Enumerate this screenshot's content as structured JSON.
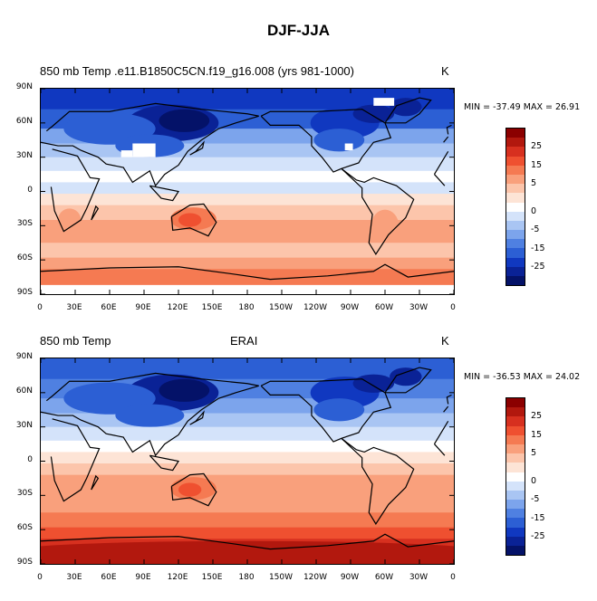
{
  "title": "DJF-JJA",
  "panels": [
    {
      "left_label": "850 mb Temp",
      "center_label": ".e11.B1850C5CN.f19_g16.008 (yrs 981-1000)",
      "units": "K",
      "min_max": "MIN = -37.49 MAX =  26.91",
      "has_missing_data": true
    },
    {
      "left_label": "850 mb Temp",
      "center_label": "ERAI",
      "units": "K",
      "min_max": "MIN = -36.53 MAX = 24.02",
      "has_missing_data": false
    }
  ],
  "lat_ticks": [
    "90N",
    "60N",
    "30N",
    "0",
    "30S",
    "60S",
    "90S"
  ],
  "lon_ticks": [
    "0",
    "30E",
    "60E",
    "90E",
    "120E",
    "150E",
    "180",
    "150W",
    "120W",
    "90W",
    "60W",
    "30W",
    "0"
  ],
  "colorbar_labels": [
    "25",
    "15",
    "5",
    "0",
    "-5",
    "-15",
    "-25"
  ],
  "colorbar_colors": [
    "#8b0000",
    "#b2180e",
    "#d7301f",
    "#ef5030",
    "#f57a52",
    "#f9a07c",
    "#fcc5ab",
    "#fde4d6",
    "#ffffff",
    "#d4e3fa",
    "#a9c5f3",
    "#7ca4ec",
    "#4f80e1",
    "#2c5fd4",
    "#1038c0",
    "#0a2296",
    "#041268"
  ]
}
